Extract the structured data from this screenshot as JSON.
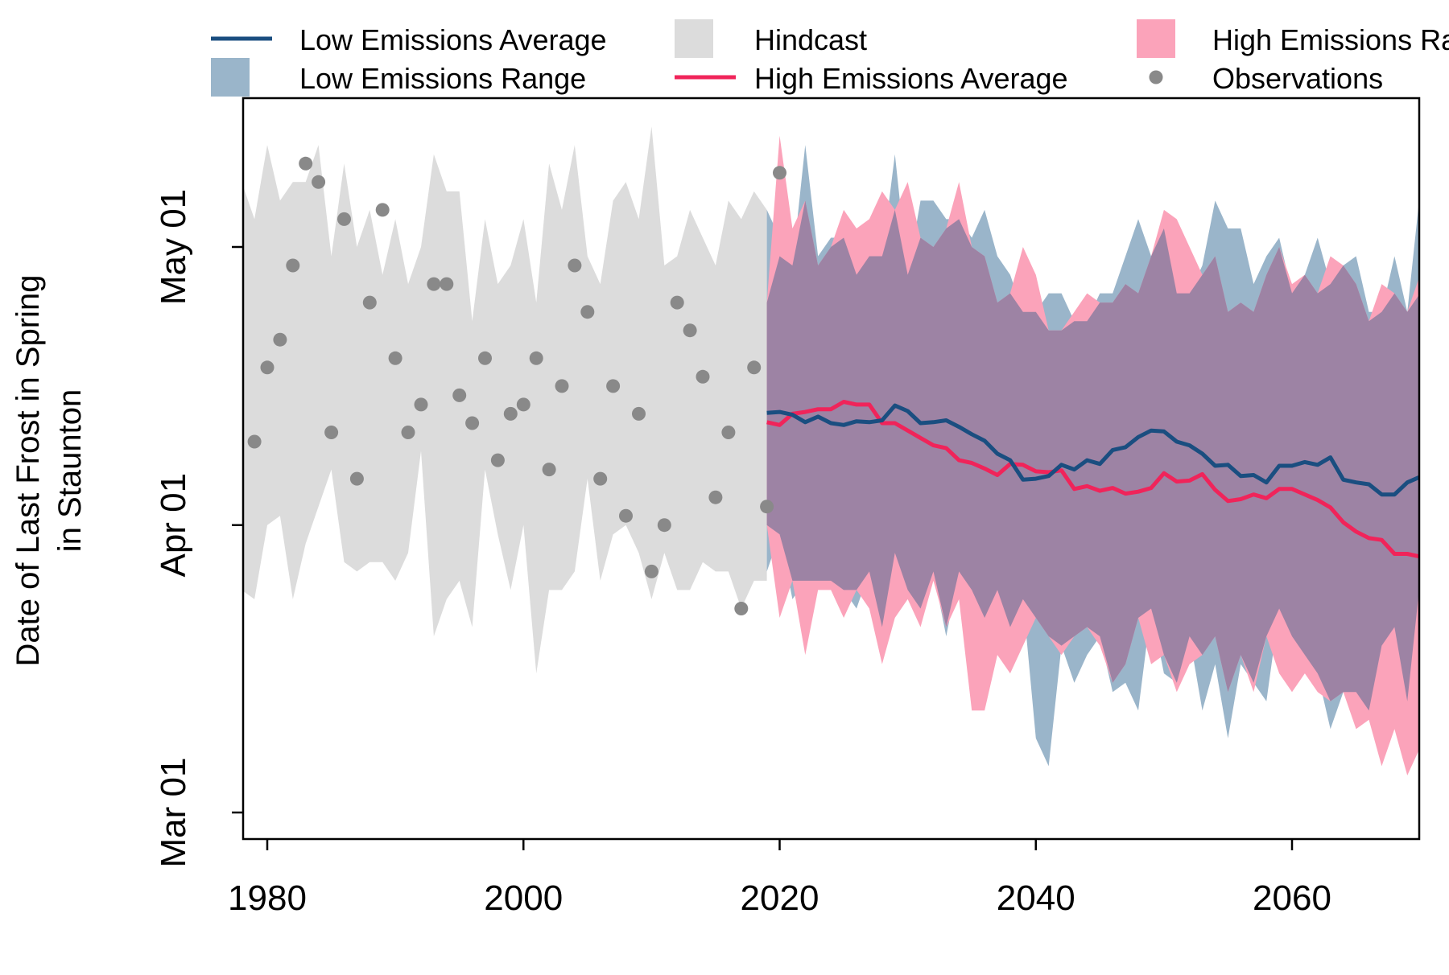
{
  "chart_data": {
    "type": "area",
    "xlabel": "",
    "ylabel_lines": [
      "Date of Last Frost in Spring",
      "in Staunton"
    ],
    "x_ticks": [
      1980,
      2000,
      2020,
      2040,
      2060
    ],
    "y_ticks": [
      {
        "day": 60,
        "label": "Mar 01"
      },
      {
        "day": 91,
        "label": "Apr 01"
      },
      {
        "day": 121,
        "label": "May 01"
      }
    ],
    "xlim": [
      1978,
      2070
    ],
    "ylim": [
      57,
      135
    ],
    "legend": [
      {
        "label": "Low Emissions Average",
        "kind": "line",
        "color": "#1a4e80"
      },
      {
        "label": "Low Emissions Range",
        "kind": "fill",
        "color": "#9ab5ca"
      },
      {
        "label": "Hindcast",
        "kind": "fill",
        "color": "#dcdcdc"
      },
      {
        "label": "High Emissions Average",
        "kind": "line",
        "color": "#f0245a"
      },
      {
        "label": "High Emissions Range",
        "kind": "fill",
        "color": "#fba3ba"
      },
      {
        "label": "Observations",
        "kind": "point",
        "color": "#898989"
      }
    ],
    "colors": {
      "low_avg": "#1a4e80",
      "high_avg": "#f0245a",
      "low_range": "#9ab5ca",
      "high_range": "#fba3ba",
      "overlap": "#9d83a4",
      "hindcast": "#dcdcdc",
      "observations": "#898989"
    },
    "hindcast": {
      "x": [
        1978,
        1979,
        1980,
        1981,
        1982,
        1983,
        1984,
        1985,
        1986,
        1987,
        1988,
        1989,
        1990,
        1991,
        1992,
        1993,
        1994,
        1995,
        1996,
        1997,
        1998,
        1999,
        2000,
        2001,
        2002,
        2003,
        2004,
        2005,
        2006,
        2007,
        2008,
        2009,
        2010,
        2011,
        2012,
        2013,
        2014,
        2015,
        2016,
        2017,
        2018,
        2019
      ],
      "upper": [
        128,
        124,
        132,
        126,
        128,
        128,
        132,
        120,
        130,
        121,
        125,
        118,
        124,
        117,
        121,
        131,
        127,
        127,
        113,
        124,
        117,
        119,
        124,
        115,
        130,
        125,
        132,
        120,
        117,
        126,
        128,
        124,
        134,
        119,
        120,
        125,
        122,
        119,
        126,
        124,
        127,
        125
      ],
      "lower": [
        84,
        83,
        91,
        92,
        83,
        89,
        93,
        97,
        87,
        86,
        87,
        87,
        85,
        88,
        99,
        79,
        83,
        85,
        80,
        97,
        90,
        84,
        91,
        75,
        84,
        84,
        86,
        96,
        85,
        90,
        91,
        88,
        83,
        88,
        84,
        84,
        87,
        86,
        86,
        82,
        85,
        85
      ]
    },
    "low_range": {
      "x": [
        2019,
        2020,
        2021,
        2022,
        2023,
        2024,
        2025,
        2026,
        2027,
        2028,
        2029,
        2030,
        2031,
        2032,
        2033,
        2034,
        2035,
        2036,
        2037,
        2038,
        2039,
        2040,
        2041,
        2042,
        2043,
        2044,
        2045,
        2046,
        2047,
        2048,
        2049,
        2050,
        2051,
        2052,
        2053,
        2054,
        2055,
        2056,
        2057,
        2058,
        2059,
        2060,
        2061,
        2062,
        2063,
        2064,
        2065,
        2066,
        2067,
        2068,
        2069,
        2070
      ],
      "upper": [
        125,
        122,
        119,
        132,
        120,
        122,
        122,
        118,
        120,
        120,
        131,
        118,
        126,
        126,
        124,
        124,
        122,
        125,
        120,
        118,
        114,
        114,
        116,
        116,
        113,
        113,
        116,
        116,
        120,
        124,
        120,
        123,
        116,
        116,
        119,
        126,
        123,
        123,
        117,
        120,
        122,
        116,
        118,
        122,
        117,
        119,
        120,
        114,
        114,
        120,
        114,
        127
      ],
      "lower": [
        86,
        90,
        83,
        85,
        85,
        85,
        84,
        82,
        86,
        80,
        88,
        84,
        82,
        86,
        79,
        86,
        84,
        81,
        84,
        80,
        83,
        68,
        65,
        78,
        74,
        77,
        79,
        73,
        74,
        71,
        82,
        75,
        74,
        79,
        71,
        76,
        68,
        76,
        74,
        72,
        82,
        79,
        77,
        75,
        69,
        73,
        73,
        71,
        78,
        80,
        72,
        85
      ]
    },
    "high_range": {
      "x": [
        2019,
        2020,
        2021,
        2022,
        2023,
        2024,
        2025,
        2026,
        2027,
        2028,
        2029,
        2030,
        2031,
        2032,
        2033,
        2034,
        2035,
        2036,
        2037,
        2038,
        2039,
        2040,
        2041,
        2042,
        2043,
        2044,
        2045,
        2046,
        2047,
        2048,
        2049,
        2050,
        2051,
        2052,
        2053,
        2054,
        2055,
        2056,
        2057,
        2058,
        2059,
        2060,
        2061,
        2062,
        2063,
        2064,
        2065,
        2066,
        2067,
        2068,
        2069,
        2070
      ],
      "upper": [
        115,
        133,
        123,
        126,
        119,
        121,
        125,
        123,
        124,
        127,
        125,
        128,
        122,
        121,
        123,
        128,
        121,
        120,
        115,
        116,
        121,
        118,
        112,
        112,
        114,
        116,
        115,
        115,
        117,
        116,
        120,
        125,
        124,
        121,
        118,
        120,
        114,
        115,
        114,
        118,
        121,
        117,
        118,
        116,
        120,
        119,
        117,
        113,
        117,
        116,
        114,
        118
      ],
      "lower": [
        91,
        81,
        85,
        77,
        84,
        84,
        81,
        84,
        82,
        76,
        81,
        83,
        80,
        85,
        80,
        83,
        71,
        71,
        77,
        75,
        78,
        81,
        79,
        77,
        79,
        80,
        78,
        74,
        76,
        81,
        76,
        77,
        73,
        76,
        77,
        79,
        73,
        77,
        73,
        79,
        75,
        73,
        75,
        73,
        72,
        73,
        69,
        70,
        65,
        69,
        64,
        67
      ]
    },
    "overlap": {
      "x": [
        2019,
        2020,
        2021,
        2022,
        2023,
        2024,
        2025,
        2026,
        2027,
        2028,
        2029,
        2030,
        2031,
        2032,
        2033,
        2034,
        2035,
        2036,
        2037,
        2038,
        2039,
        2040,
        2041,
        2042,
        2043,
        2044,
        2045,
        2046,
        2047,
        2048,
        2049,
        2050,
        2051,
        2052,
        2053,
        2054,
        2055,
        2056,
        2057,
        2058,
        2059,
        2060,
        2061,
        2062,
        2063,
        2064,
        2065,
        2066,
        2067,
        2068,
        2069,
        2070
      ],
      "upper": [
        115,
        120,
        119,
        126,
        119,
        121,
        122,
        118,
        120,
        120,
        125,
        118,
        122,
        121,
        123,
        124,
        121,
        120,
        115,
        116,
        114,
        114,
        112,
        112,
        113,
        113,
        115,
        115,
        117,
        116,
        120,
        123,
        116,
        116,
        118,
        120,
        114,
        115,
        114,
        118,
        121,
        116,
        118,
        116,
        117,
        119,
        117,
        113,
        114,
        116,
        114,
        116
      ],
      "lower": [
        91,
        90,
        85,
        85,
        85,
        85,
        84,
        84,
        86,
        80,
        88,
        84,
        82,
        86,
        80,
        86,
        84,
        81,
        84,
        80,
        83,
        81,
        79,
        78,
        79,
        80,
        79,
        74,
        76,
        81,
        82,
        77,
        74,
        79,
        77,
        79,
        73,
        77,
        74,
        79,
        82,
        79,
        77,
        75,
        72,
        73,
        73,
        71,
        78,
        80,
        72,
        85
      ]
    },
    "low_average": {
      "x": [
        2019,
        2020,
        2021,
        2022,
        2023,
        2024,
        2025,
        2026,
        2027,
        2028,
        2029,
        2030,
        2031,
        2032,
        2033,
        2034,
        2035,
        2036,
        2037,
        2038,
        2039,
        2040,
        2041,
        2042,
        2043,
        2044,
        2045,
        2046,
        2047,
        2048,
        2049,
        2050,
        2051,
        2052,
        2053,
        2054,
        2055,
        2056,
        2057,
        2058,
        2059,
        2060,
        2061,
        2062,
        2063,
        2064,
        2065,
        2066,
        2067,
        2068,
        2069,
        2070
      ],
      "values": [
        103.1,
        103.2,
        102.9,
        102.1,
        102.7,
        102.0,
        101.8,
        102.2,
        102.1,
        102.3,
        103.9,
        103.3,
        102.0,
        102.1,
        102.3,
        101.6,
        100.8,
        100.1,
        98.7,
        98.0,
        95.9,
        96.0,
        96.3,
        97.5,
        97.0,
        98.0,
        97.6,
        99.1,
        99.4,
        100.5,
        101.2,
        101.1,
        100.0,
        99.6,
        98.7,
        97.4,
        97.5,
        96.3,
        96.4,
        95.6,
        97.4,
        97.4,
        97.8,
        97.5,
        98.3,
        95.9,
        95.6,
        95.4,
        94.3,
        94.3,
        95.6,
        96.2
      ]
    },
    "high_average": {
      "x": [
        2019,
        2020,
        2021,
        2022,
        2023,
        2024,
        2025,
        2026,
        2027,
        2028,
        2029,
        2030,
        2031,
        2032,
        2033,
        2034,
        2035,
        2036,
        2037,
        2038,
        2039,
        2040,
        2041,
        2042,
        2043,
        2044,
        2045,
        2046,
        2047,
        2048,
        2049,
        2050,
        2051,
        2052,
        2053,
        2054,
        2055,
        2056,
        2057,
        2058,
        2059,
        2060,
        2061,
        2062,
        2063,
        2064,
        2065,
        2066,
        2067,
        2068,
        2069,
        2070
      ],
      "values": [
        102.1,
        101.8,
        103.0,
        103.2,
        103.5,
        103.5,
        104.3,
        104.0,
        104.0,
        102.0,
        102.0,
        101.2,
        100.4,
        99.6,
        99.3,
        98.0,
        97.7,
        97.1,
        96.4,
        97.6,
        97.5,
        96.8,
        96.7,
        96.9,
        94.9,
        95.2,
        94.7,
        95.0,
        94.4,
        94.6,
        95.0,
        96.6,
        95.7,
        95.8,
        96.5,
        94.8,
        93.6,
        93.8,
        94.3,
        93.9,
        94.9,
        94.9,
        94.3,
        93.7,
        92.9,
        91.3,
        90.3,
        89.6,
        89.4,
        87.9,
        87.9,
        87.6
      ]
    },
    "observations": {
      "x": [
        1979,
        1980,
        1981,
        1982,
        1984,
        1985,
        1986,
        1987,
        1988,
        1989,
        1990,
        1991,
        1992,
        1993,
        1994,
        1995,
        1996,
        1997,
        1998,
        1999,
        2000,
        2001,
        2002,
        2003,
        2004,
        2005,
        2006,
        2007,
        2008,
        2009,
        2010,
        2011,
        2012,
        2013,
        2014,
        2015,
        2016,
        2017,
        2018,
        2019
      ],
      "values": [
        100,
        108,
        111,
        119,
        128,
        101,
        124,
        96,
        115,
        125,
        109,
        101,
        104,
        117,
        117,
        105,
        102,
        109,
        98,
        103,
        104,
        109,
        97,
        106,
        119,
        114,
        96,
        106,
        92,
        103,
        86,
        91,
        115,
        112,
        107,
        94,
        101,
        82,
        108,
        93
      ]
    },
    "observations_high": {
      "x": [
        1983,
        2020
      ],
      "values": [
        130,
        129
      ]
    }
  }
}
